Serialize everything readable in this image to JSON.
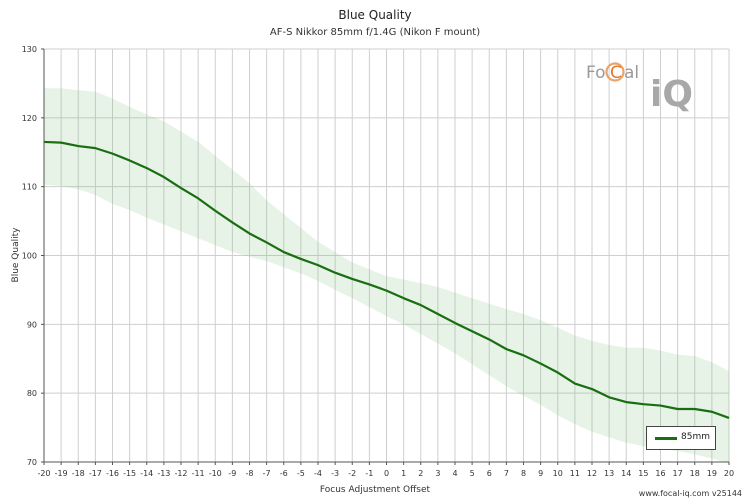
{
  "chart_data": {
    "type": "line",
    "title": "Blue Quality",
    "subtitle": "AF-S Nikkor 85mm f/1.4G (Nikon F mount)",
    "xlabel": "Focus Adjustment Offset",
    "ylabel": "Blue Quality",
    "xlim": [
      -20,
      20
    ],
    "ylim": [
      70,
      130
    ],
    "xticks": [
      -20,
      -19,
      -18,
      -17,
      -16,
      -15,
      -14,
      -13,
      -12,
      -11,
      -10,
      -9,
      -8,
      -7,
      -6,
      -5,
      -4,
      -3,
      -2,
      -1,
      0,
      1,
      2,
      3,
      4,
      5,
      6,
      7,
      8,
      9,
      10,
      11,
      12,
      13,
      14,
      15,
      16,
      17,
      18,
      19,
      20
    ],
    "yticks": [
      70,
      80,
      90,
      100,
      110,
      120,
      130
    ],
    "grid": true,
    "legend_position": "bottom-right",
    "series": [
      {
        "name": "85mm",
        "color": "#1a6e12",
        "x": [
          -20,
          -19,
          -18,
          -17,
          -16,
          -15,
          -14,
          -13,
          -12,
          -11,
          -10,
          -9,
          -8,
          -7,
          -6,
          -5,
          -4,
          -3,
          -2,
          -1,
          0,
          1,
          2,
          3,
          4,
          5,
          6,
          7,
          8,
          9,
          10,
          11,
          12,
          13,
          14,
          15,
          16,
          17,
          18,
          19,
          20
        ],
        "y": [
          116.5,
          116.4,
          115.9,
          115.6,
          114.8,
          113.8,
          112.7,
          111.4,
          109.8,
          108.3,
          106.5,
          104.8,
          103.2,
          101.9,
          100.5,
          99.5,
          98.6,
          97.5,
          96.6,
          95.8,
          94.9,
          93.8,
          92.8,
          91.5,
          90.2,
          89.0,
          87.8,
          86.4,
          85.5,
          84.3,
          83.0,
          81.4,
          80.6,
          79.4,
          78.7,
          78.4,
          78.2,
          77.7,
          77.7,
          77.3,
          76.4
        ],
        "band_upper": [
          124.3,
          124.3,
          124.0,
          123.8,
          122.8,
          121.6,
          120.5,
          119.5,
          118.0,
          116.5,
          114.5,
          112.5,
          110.5,
          108.0,
          106.0,
          104.0,
          102.0,
          100.5,
          99.0,
          98.0,
          97.0,
          96.5,
          96.0,
          95.4,
          94.6,
          93.8,
          93.0,
          92.2,
          91.5,
          90.6,
          89.5,
          88.4,
          87.6,
          87.0,
          86.6,
          86.6,
          86.2,
          85.6,
          85.4,
          84.5,
          83.2
        ],
        "band_lower": [
          110.3,
          110.1,
          109.6,
          108.8,
          107.5,
          106.6,
          105.5,
          104.5,
          103.5,
          102.5,
          101.5,
          100.5,
          99.8,
          99.2,
          98.3,
          97.4,
          96.3,
          95.0,
          93.8,
          92.5,
          91.2,
          90.0,
          88.6,
          87.2,
          85.8,
          84.2,
          82.6,
          81.0,
          79.6,
          78.3,
          76.8,
          75.5,
          74.4,
          73.6,
          72.8,
          72.3,
          71.9,
          71.6,
          71.1,
          70.5,
          69.8
        ]
      }
    ]
  },
  "legend": {
    "label": "85mm"
  },
  "logo": {
    "text_a": "Fo",
    "text_b": "C",
    "text_c": "al",
    "text_d": "iQ"
  },
  "credit": "www.focal-iq.com  v25144"
}
